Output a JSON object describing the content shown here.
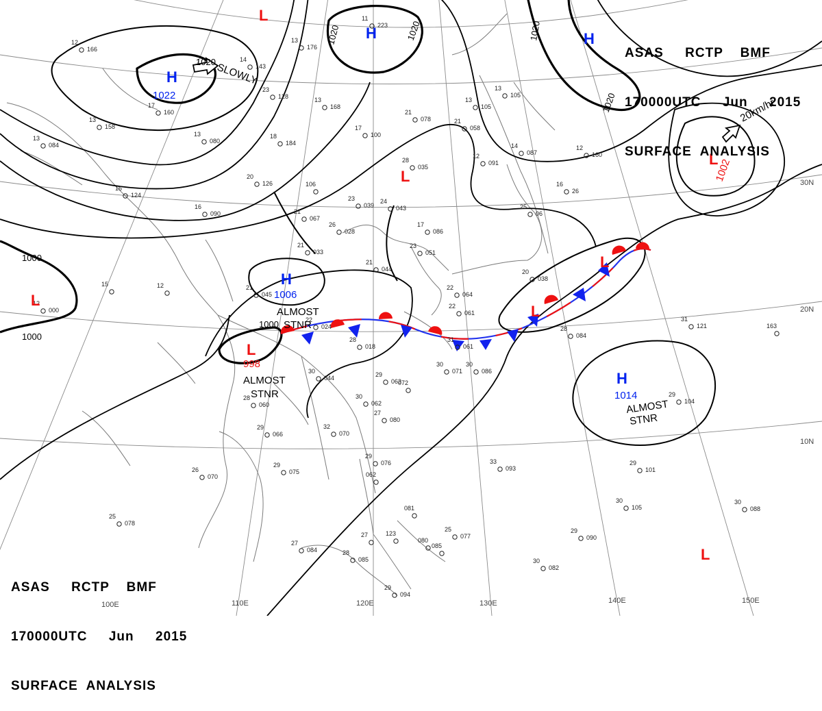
{
  "header_top": {
    "line1": "ASAS     RCTP    BMF",
    "line2": "170000UTC     Jun     2015",
    "line3": "SURFACE  ANALYSIS"
  },
  "header_bottom": {
    "line1": "ASAS     RCTP    BMF",
    "line2": "170000UTC     Jun     2015",
    "line3": "SURFACE  ANALYSIS"
  },
  "pressure_systems": [
    {
      "type": "H",
      "pressure": "1022"
    },
    {
      "type": "H",
      "pressure": ""
    },
    {
      "type": "H",
      "pressure": ""
    },
    {
      "type": "H",
      "pressure": "1006"
    },
    {
      "type": "H",
      "pressure": "1014"
    },
    {
      "type": "L",
      "pressure": ""
    },
    {
      "type": "L",
      "pressure": "1002"
    },
    {
      "type": "L",
      "pressure": ""
    },
    {
      "type": "L",
      "pressure": ""
    },
    {
      "type": "L",
      "pressure": "998"
    },
    {
      "type": "L",
      "pressure": ""
    },
    {
      "type": "L",
      "pressure": ""
    },
    {
      "type": "L",
      "pressure": ""
    }
  ],
  "isobar_labels": [
    "1020",
    "1020",
    "1020",
    "1020",
    "1020",
    "1000",
    "1000",
    "1000"
  ],
  "annotations": [
    {
      "text": "SLOWLY"
    },
    {
      "text": "20km/hr"
    },
    {
      "text": "ALMOST"
    },
    {
      "text": "STNR"
    },
    {
      "text": "ALMOST"
    },
    {
      "text": "STNR"
    },
    {
      "text": "ALMOST"
    },
    {
      "text": "STNR"
    }
  ],
  "grid_labels": [
    "100E",
    "110E",
    "120E",
    "130E",
    "140E",
    "150E",
    "30N",
    "20N",
    "10N"
  ],
  "station_reports": [
    {
      "t": "12",
      "p": "166"
    },
    {
      "t": "17",
      "p": "160"
    },
    {
      "t": "13",
      "p": "158"
    },
    {
      "t": "11",
      "p": "223"
    },
    {
      "t": "14",
      "p": "143"
    },
    {
      "t": "13",
      "p": "176"
    },
    {
      "t": "23",
      "p": "128"
    },
    {
      "t": "13",
      "p": "168"
    },
    {
      "t": "18",
      "p": "184"
    },
    {
      "t": "13",
      "p": "084"
    },
    {
      "t": "13",
      "p": "080"
    },
    {
      "t": "20",
      "p": "126"
    },
    {
      "t": "16",
      "p": "124"
    },
    {
      "t": "106"
    },
    {
      "t": "16",
      "p": "090"
    },
    {
      "t": "21",
      "p": "067"
    },
    {
      "t": "26",
      "p": "028"
    },
    {
      "t": "23",
      "p": "039"
    },
    {
      "t": "24",
      "p": "043"
    },
    {
      "t": "28",
      "p": "035"
    },
    {
      "t": "17",
      "p": "100"
    },
    {
      "t": "21",
      "p": "078"
    },
    {
      "t": "21",
      "p": "058"
    },
    {
      "t": "13",
      "p": "105"
    },
    {
      "t": "12",
      "p": "091"
    },
    {
      "t": "14",
      "p": "087"
    },
    {
      "t": "13",
      "p": "105"
    },
    {
      "t": "12",
      "p": "160"
    },
    {
      "t": "16",
      "p": "26"
    },
    {
      "t": "25",
      "p": "06"
    },
    {
      "t": "17",
      "p": "086"
    },
    {
      "t": "23",
      "p": "051"
    },
    {
      "t": "21",
      "p": "033"
    },
    {
      "t": "21",
      "p": "045"
    },
    {
      "t": "21",
      "p": "044"
    },
    {
      "t": "12",
      "p": "000"
    },
    {
      "t": "15"
    },
    {
      "t": "12"
    },
    {
      "t": "22",
      "p": "024"
    },
    {
      "t": "28",
      "p": "018"
    },
    {
      "t": "22",
      "p": "064"
    },
    {
      "t": "22",
      "p": "061"
    },
    {
      "t": "20",
      "p": "038"
    },
    {
      "t": "28",
      "p": "084"
    },
    {
      "t": "31",
      "p": "121"
    },
    {
      "t": "31",
      "p": "061"
    },
    {
      "t": "30",
      "p": "071"
    },
    {
      "t": "30",
      "p": "086"
    },
    {
      "t": "30",
      "p": "044"
    },
    {
      "t": "29",
      "p": "063"
    },
    {
      "t": "30",
      "p": "062"
    },
    {
      "t": "27",
      "p": "080"
    },
    {
      "t": "072"
    },
    {
      "t": "28",
      "p": "060"
    },
    {
      "t": "29",
      "p": "066"
    },
    {
      "t": "32",
      "p": "070"
    },
    {
      "t": "29",
      "p": "075"
    },
    {
      "t": "26",
      "p": "070"
    },
    {
      "t": "29",
      "p": "076"
    },
    {
      "t": "062"
    },
    {
      "t": "33",
      "p": "093"
    },
    {
      "t": "29",
      "p": "101"
    },
    {
      "t": "29",
      "p": "104"
    },
    {
      "t": "30",
      "p": "105"
    },
    {
      "t": "30",
      "p": "088"
    },
    {
      "t": "25",
      "p": "078"
    },
    {
      "t": "081"
    },
    {
      "t": "27",
      "p": "084"
    },
    {
      "t": "28",
      "p": "085"
    },
    {
      "t": "27"
    },
    {
      "t": "123"
    },
    {
      "t": "080"
    },
    {
      "t": "085"
    },
    {
      "t": "25",
      "p": "077"
    },
    {
      "t": "29",
      "p": "090"
    },
    {
      "t": "30",
      "p": "082"
    },
    {
      "t": "29",
      "p": "094"
    },
    {
      "t": "163"
    }
  ],
  "colors": {
    "high": "#0022ee",
    "low": "#ee1111",
    "isobar": "#000000",
    "grid": "#555555",
    "coast": "#7a7a7a"
  }
}
